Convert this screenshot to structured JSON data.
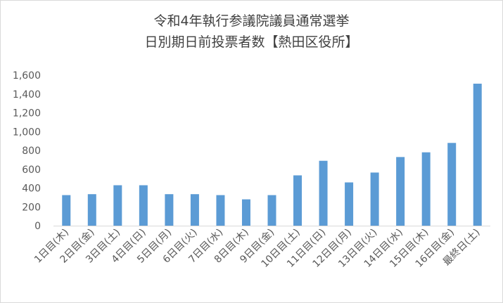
{
  "chart_data": {
    "type": "bar",
    "title_line1": "令和4年執行参議院議員通常選挙",
    "title_line2": "日別期日前投票者数【熱田区役所】",
    "categories": [
      "1日目(木)",
      "2日目(金)",
      "3日目(土)",
      "4日目(日)",
      "5日目(月)",
      "6日目(火)",
      "7日目(水)",
      "8日目(木)",
      "9日目(金)",
      "10日目(土)",
      "11日目(日)",
      "12日目(月)",
      "13日目(火)",
      "14日目(水)",
      "15日目(木)",
      "16日目(金)",
      "最終日(土)"
    ],
    "values": [
      325,
      335,
      430,
      430,
      335,
      335,
      325,
      280,
      325,
      535,
      690,
      460,
      565,
      730,
      780,
      880,
      1510
    ],
    "ylim": [
      0,
      1600
    ],
    "yticks": [
      "0",
      "200",
      "400",
      "600",
      "800",
      "1,000",
      "1,200",
      "1,400",
      "1,600"
    ],
    "ytick_values": [
      0,
      200,
      400,
      600,
      800,
      1000,
      1200,
      1400,
      1600
    ],
    "grid": false,
    "legend": "none",
    "bar_color": "#5b9bd5"
  }
}
